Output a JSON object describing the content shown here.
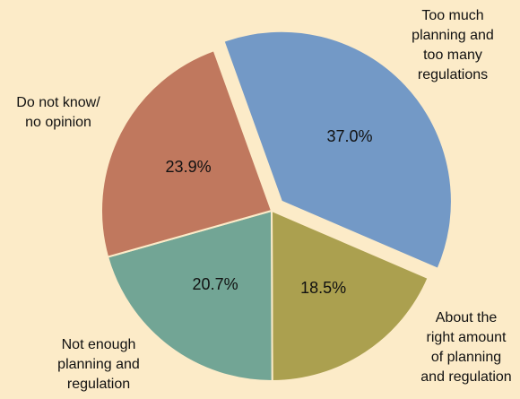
{
  "chart_data": {
    "type": "pie",
    "categories": [
      [
        "Too much",
        "planning and",
        "too many",
        "regulations"
      ],
      [
        "About the",
        "right amount",
        "of planning",
        "and regulation"
      ],
      [
        "Not enough",
        "planning and",
        "regulation"
      ],
      [
        "Do not know/",
        "no opinion"
      ]
    ],
    "values": [
      37.0,
      18.5,
      20.7,
      23.9
    ],
    "value_labels": [
      "37.0%",
      "18.5%",
      "20.7%",
      "23.9%"
    ],
    "colors": [
      "#7399c6",
      "#aba04f",
      "#72a595",
      "#c0785e"
    ],
    "exploded": [
      true,
      false,
      false,
      false
    ]
  }
}
